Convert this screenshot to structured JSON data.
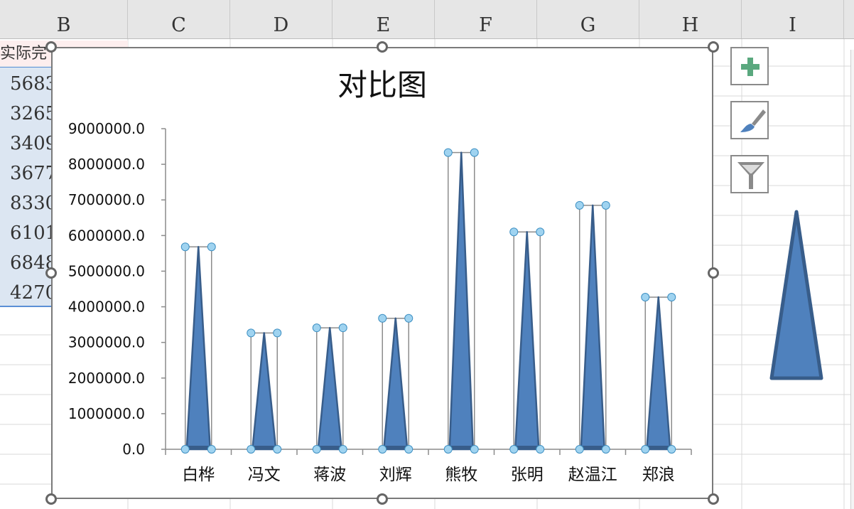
{
  "columns": [
    "B",
    "C",
    "D",
    "E",
    "F",
    "G",
    "H",
    "I"
  ],
  "sheet": {
    "header_cell": "实际完",
    "cells": [
      "5683",
      "3265",
      "3409",
      "3677",
      "8330",
      "6101",
      "6848",
      "4270"
    ]
  },
  "chart": {
    "title": "对比图",
    "fill_color": "#4f81bd",
    "stroke_color": "#385d8a",
    "selection_handle_color": "#9fd3f0"
  },
  "chart_data": {
    "type": "bar",
    "title": "对比图",
    "categories": [
      "白桦",
      "冯文",
      "蒋波",
      "刘辉",
      "熊牧",
      "张明",
      "赵温江",
      "郑浪"
    ],
    "values": [
      5683000,
      3265000,
      3409000,
      3677000,
      8330000,
      6101000,
      6848000,
      4270000
    ],
    "ylim": [
      0,
      9000000
    ],
    "yticks": [
      "0.0",
      "1000000.0",
      "2000000.0",
      "3000000.0",
      "4000000.0",
      "5000000.0",
      "6000000.0",
      "7000000.0",
      "8000000.0",
      "9000000.0"
    ],
    "xlabel": "",
    "ylabel": "",
    "grid": false,
    "legend": "none",
    "mark_shape": "triangle"
  },
  "side_buttons": [
    {
      "name": "chart-elements-button",
      "icon": "plus-icon"
    },
    {
      "name": "chart-styles-button",
      "icon": "brush-icon"
    },
    {
      "name": "chart-filters-button",
      "icon": "funnel-icon"
    }
  ]
}
